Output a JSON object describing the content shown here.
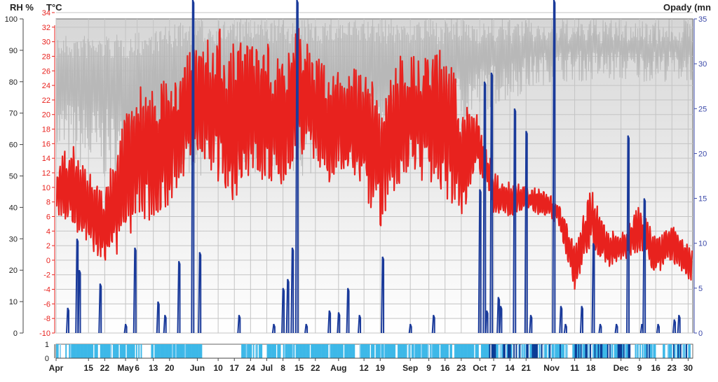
{
  "chart_data": {
    "type": "line",
    "year_start": "04-01",
    "titles": {
      "rh": "RH %",
      "temp": "T°C",
      "precip": "Opady (mn"
    },
    "axes": {
      "rh": {
        "range": [
          0,
          100
        ],
        "ticks": [
          0,
          10,
          20,
          30,
          40,
          50,
          60,
          70,
          80,
          90,
          100
        ]
      },
      "temp": {
        "range": [
          -10,
          34
        ],
        "ticks": [
          -10,
          -8,
          -6,
          -4,
          -2,
          0,
          2,
          4,
          6,
          8,
          10,
          12,
          14,
          16,
          18,
          20,
          22,
          24,
          26,
          28,
          30,
          32,
          34
        ]
      },
      "precip": {
        "range": [
          0,
          35
        ],
        "ticks": [
          0,
          5,
          10,
          15,
          20,
          25,
          30,
          35
        ]
      },
      "wetness": {
        "range": [
          0,
          1
        ],
        "ticks": [
          0,
          1
        ]
      }
    },
    "x_ticks": [
      [
        "Apr",
        "04-01"
      ],
      [
        "15",
        "04-15"
      ],
      [
        "22",
        "04-22"
      ],
      [
        "May",
        "05-01"
      ],
      [
        "6",
        "05-06"
      ],
      [
        "13",
        "05-13"
      ],
      [
        "20",
        "05-20"
      ],
      [
        "Jun",
        "06-01"
      ],
      [
        "10",
        "06-10"
      ],
      [
        "17",
        "06-17"
      ],
      [
        "24",
        "06-24"
      ],
      [
        "Jul",
        "07-01"
      ],
      [
        "8",
        "07-08"
      ],
      [
        "15",
        "07-15"
      ],
      [
        "22",
        "07-22"
      ],
      [
        "Aug",
        "08-01"
      ],
      [
        "12",
        "08-12"
      ],
      [
        "19",
        "08-19"
      ],
      [
        "Sep",
        "09-01"
      ],
      [
        "9",
        "09-09"
      ],
      [
        "16",
        "09-16"
      ],
      [
        "23",
        "09-23"
      ],
      [
        "Oct",
        "10-01"
      ],
      [
        "7",
        "10-07"
      ],
      [
        "14",
        "10-14"
      ],
      [
        "21",
        "10-21"
      ],
      [
        "Nov",
        "11-01"
      ],
      [
        "11",
        "11-11"
      ],
      [
        "18",
        "11-18"
      ],
      [
        "Dec",
        "12-01"
      ],
      [
        "9",
        "12-09"
      ],
      [
        "16",
        "12-16"
      ],
      [
        "23",
        "12-23"
      ],
      [
        "30",
        "12-30"
      ]
    ],
    "colors": {
      "temperature": "#e8221e",
      "precipitation": "#1a3a9a",
      "rh": "#b8b8b8",
      "wetness": "#3db8e8",
      "wetness_dark": "#0a3c96",
      "temp_axis": "#e8221e",
      "precip_axis": "#3a48a8"
    },
    "temperature_envelope": [
      [
        "04-01",
        6,
        14
      ],
      [
        "04-08",
        4,
        16
      ],
      [
        "04-15",
        2,
        12
      ],
      [
        "04-22",
        -1,
        10
      ],
      [
        "04-29",
        0,
        18
      ],
      [
        "05-06",
        6,
        24
      ],
      [
        "05-13",
        4,
        26
      ],
      [
        "05-20",
        8,
        24
      ],
      [
        "05-27",
        12,
        28
      ],
      [
        "06-03",
        14,
        30
      ],
      [
        "06-10",
        10,
        32
      ],
      [
        "06-17",
        8,
        30
      ],
      [
        "06-24",
        12,
        30
      ],
      [
        "07-01",
        10,
        30
      ],
      [
        "07-08",
        10,
        28
      ],
      [
        "07-15",
        14,
        32
      ],
      [
        "07-22",
        12,
        28
      ],
      [
        "07-29",
        10,
        26
      ],
      [
        "08-05",
        12,
        28
      ],
      [
        "08-12",
        8,
        26
      ],
      [
        "08-19",
        4,
        24
      ],
      [
        "08-26",
        10,
        28
      ],
      [
        "09-02",
        12,
        28
      ],
      [
        "09-09",
        10,
        28
      ],
      [
        "09-16",
        8,
        30
      ],
      [
        "09-23",
        6,
        22
      ],
      [
        "09-30",
        12,
        20
      ],
      [
        "10-04",
        10,
        16
      ],
      [
        "10-07",
        6,
        12
      ],
      [
        "10-14",
        6,
        11
      ],
      [
        "10-21",
        7,
        10
      ],
      [
        "10-28",
        6,
        10
      ],
      [
        "11-04",
        5,
        8
      ],
      [
        "11-11",
        -4,
        2
      ],
      [
        "11-18",
        2,
        10
      ],
      [
        "11-25",
        -1,
        4
      ],
      [
        "12-02",
        0,
        4
      ],
      [
        "12-09",
        1,
        8
      ],
      [
        "12-16",
        -2,
        3
      ],
      [
        "12-23",
        0,
        5
      ],
      [
        "12-30",
        -3,
        2
      ]
    ],
    "rh_envelope": [
      [
        "04-01",
        55,
        95
      ],
      [
        "05-01",
        45,
        95
      ],
      [
        "06-01",
        50,
        100
      ],
      [
        "07-01",
        50,
        100
      ],
      [
        "08-01",
        50,
        100
      ],
      [
        "09-01",
        55,
        100
      ],
      [
        "10-01",
        70,
        100
      ],
      [
        "11-01",
        80,
        100
      ],
      [
        "12-01",
        80,
        100
      ],
      [
        "12-31",
        80,
        100
      ]
    ],
    "precipitation_events": [
      [
        "04-06",
        2.8
      ],
      [
        "04-10",
        10.5
      ],
      [
        "04-11",
        7
      ],
      [
        "04-20",
        5.5
      ],
      [
        "05-01",
        1
      ],
      [
        "05-05",
        9.5
      ],
      [
        "05-15",
        3.5
      ],
      [
        "05-18",
        2
      ],
      [
        "05-24",
        8
      ],
      [
        "05-30",
        40
      ],
      [
        "06-02",
        9
      ],
      [
        "06-19",
        2
      ],
      [
        "07-04",
        1
      ],
      [
        "07-08",
        5
      ],
      [
        "07-10",
        6
      ],
      [
        "07-12",
        9.5
      ],
      [
        "07-14",
        40
      ],
      [
        "07-18",
        1
      ],
      [
        "07-28",
        2.5
      ],
      [
        "08-01",
        2.3
      ],
      [
        "08-05",
        5
      ],
      [
        "08-10",
        2
      ],
      [
        "08-20",
        8.5
      ],
      [
        "09-01",
        1
      ],
      [
        "09-11",
        2
      ],
      [
        "10-01",
        16
      ],
      [
        "10-03",
        28
      ],
      [
        "10-04",
        2.5
      ],
      [
        "10-06",
        29
      ],
      [
        "10-09",
        4
      ],
      [
        "10-10",
        3
      ],
      [
        "10-16",
        25
      ],
      [
        "10-21",
        22.5
      ],
      [
        "10-23",
        2
      ],
      [
        "11-02",
        40
      ],
      [
        "11-05",
        3
      ],
      [
        "11-07",
        1
      ],
      [
        "11-14",
        3
      ],
      [
        "11-19",
        10
      ],
      [
        "11-22",
        1
      ],
      [
        "11-29",
        1
      ],
      [
        "12-04",
        22
      ],
      [
        "12-10",
        1
      ],
      [
        "12-11",
        15
      ],
      [
        "12-17",
        1
      ],
      [
        "12-24",
        1.5
      ],
      [
        "12-26",
        2
      ]
    ],
    "wetness_dry_periods": [
      [
        "04-03",
        "04-04"
      ],
      [
        "05-08",
        "05-11"
      ],
      [
        "06-03",
        "06-19"
      ],
      [
        "06-29",
        "06-30"
      ],
      [
        "07-07",
        "07-07"
      ],
      [
        "08-08",
        "08-09"
      ],
      [
        "11-08",
        "11-09"
      ],
      [
        "12-05",
        "12-06"
      ],
      [
        "12-16",
        "12-18"
      ]
    ],
    "grid": true
  }
}
